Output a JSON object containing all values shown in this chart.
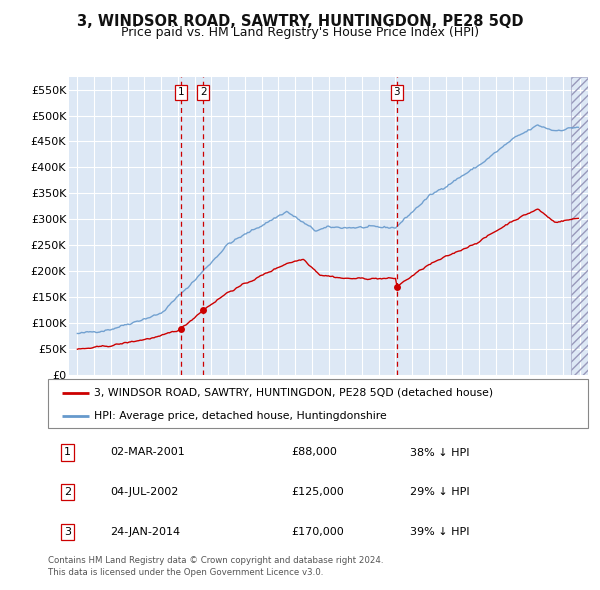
{
  "title": "3, WINDSOR ROAD, SAWTRY, HUNTINGDON, PE28 5QD",
  "subtitle": "Price paid vs. HM Land Registry's House Price Index (HPI)",
  "ylim": [
    0,
    575000
  ],
  "yticks": [
    0,
    50000,
    100000,
    150000,
    200000,
    250000,
    300000,
    350000,
    400000,
    450000,
    500000,
    550000
  ],
  "ytick_labels": [
    "£0",
    "£50K",
    "£100K",
    "£150K",
    "£200K",
    "£250K",
    "£300K",
    "£350K",
    "£400K",
    "£450K",
    "£500K",
    "£550K"
  ],
  "xlim_start": 1994.5,
  "xlim_end": 2025.5,
  "sale_dates": [
    2001.17,
    2002.51,
    2014.07
  ],
  "sale_labels": [
    "1",
    "2",
    "3"
  ],
  "sale_prices": [
    88000,
    125000,
    170000
  ],
  "sale_color": "#cc0000",
  "hpi_color": "#6699cc",
  "background_color": "#ffffff",
  "plot_bg_color": "#dde8f5",
  "grid_color": "#ffffff",
  "legend_red_label": "3, WINDSOR ROAD, SAWTRY, HUNTINGDON, PE28 5QD (detached house)",
  "legend_blue_label": "HPI: Average price, detached house, Huntingdonshire",
  "table_rows": [
    {
      "num": "1",
      "date": "02-MAR-2001",
      "price": "£88,000",
      "pct": "38% ↓ HPI"
    },
    {
      "num": "2",
      "date": "04-JUL-2002",
      "price": "£125,000",
      "pct": "29% ↓ HPI"
    },
    {
      "num": "3",
      "date": "24-JAN-2014",
      "price": "£170,000",
      "pct": "39% ↓ HPI"
    }
  ],
  "footer": "Contains HM Land Registry data © Crown copyright and database right 2024.\nThis data is licensed under the Open Government Licence v3.0."
}
